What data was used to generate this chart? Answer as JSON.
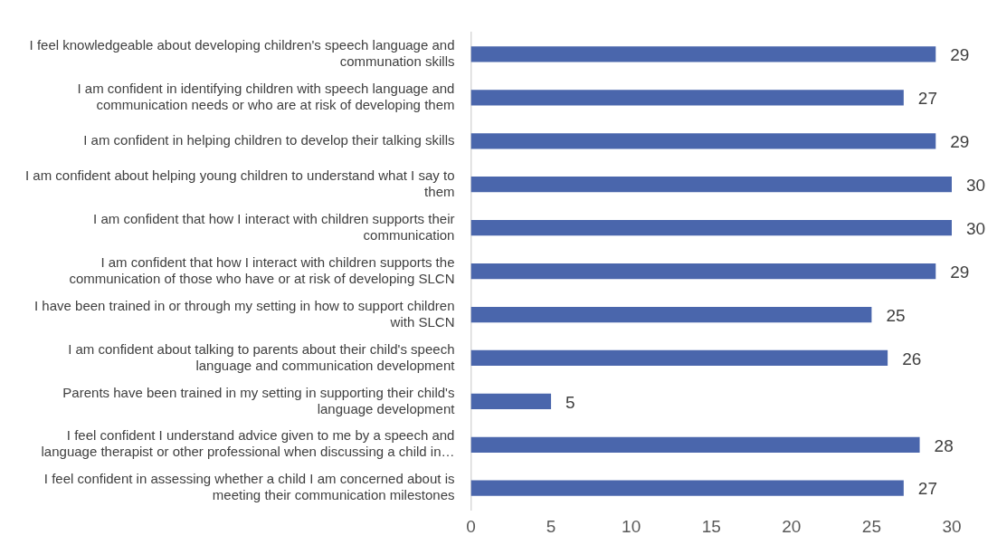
{
  "chart_data": {
    "type": "bar",
    "orientation": "horizontal",
    "categories": [
      "I feel knowledgeable about developing children's speech language and communation skills",
      "I am confident in identifying children with speech language and communication needs or who are at risk of developing them",
      "I am confident in helping children to develop their talking skills",
      "I am confident about helping young children to understand what I say to them",
      "I am confident that how I interact with children supports their communication",
      "I am confident that how I interact with children supports the communication of those who have or at risk of developing SLCN",
      "I have been trained in or through my setting in how to support children with SLCN",
      "I am confident about talking to parents about their child's speech language and communication development",
      "Parents have been trained in my setting in supporting their child's language development",
      "I feel confident I understand advice given to me by a speech and language therapist or other professional when discussing a child in…",
      "I feel confident in assessing whether a child I am concerned about is meeting their communication milestones"
    ],
    "values": [
      29,
      27,
      29,
      30,
      30,
      29,
      25,
      26,
      5,
      28,
      27
    ],
    "color": "#4a66ac",
    "xlim": [
      0,
      30
    ],
    "xticks": [
      0,
      5,
      10,
      15,
      20,
      25,
      30
    ],
    "data_labels": true,
    "grid": false,
    "legend": false
  }
}
